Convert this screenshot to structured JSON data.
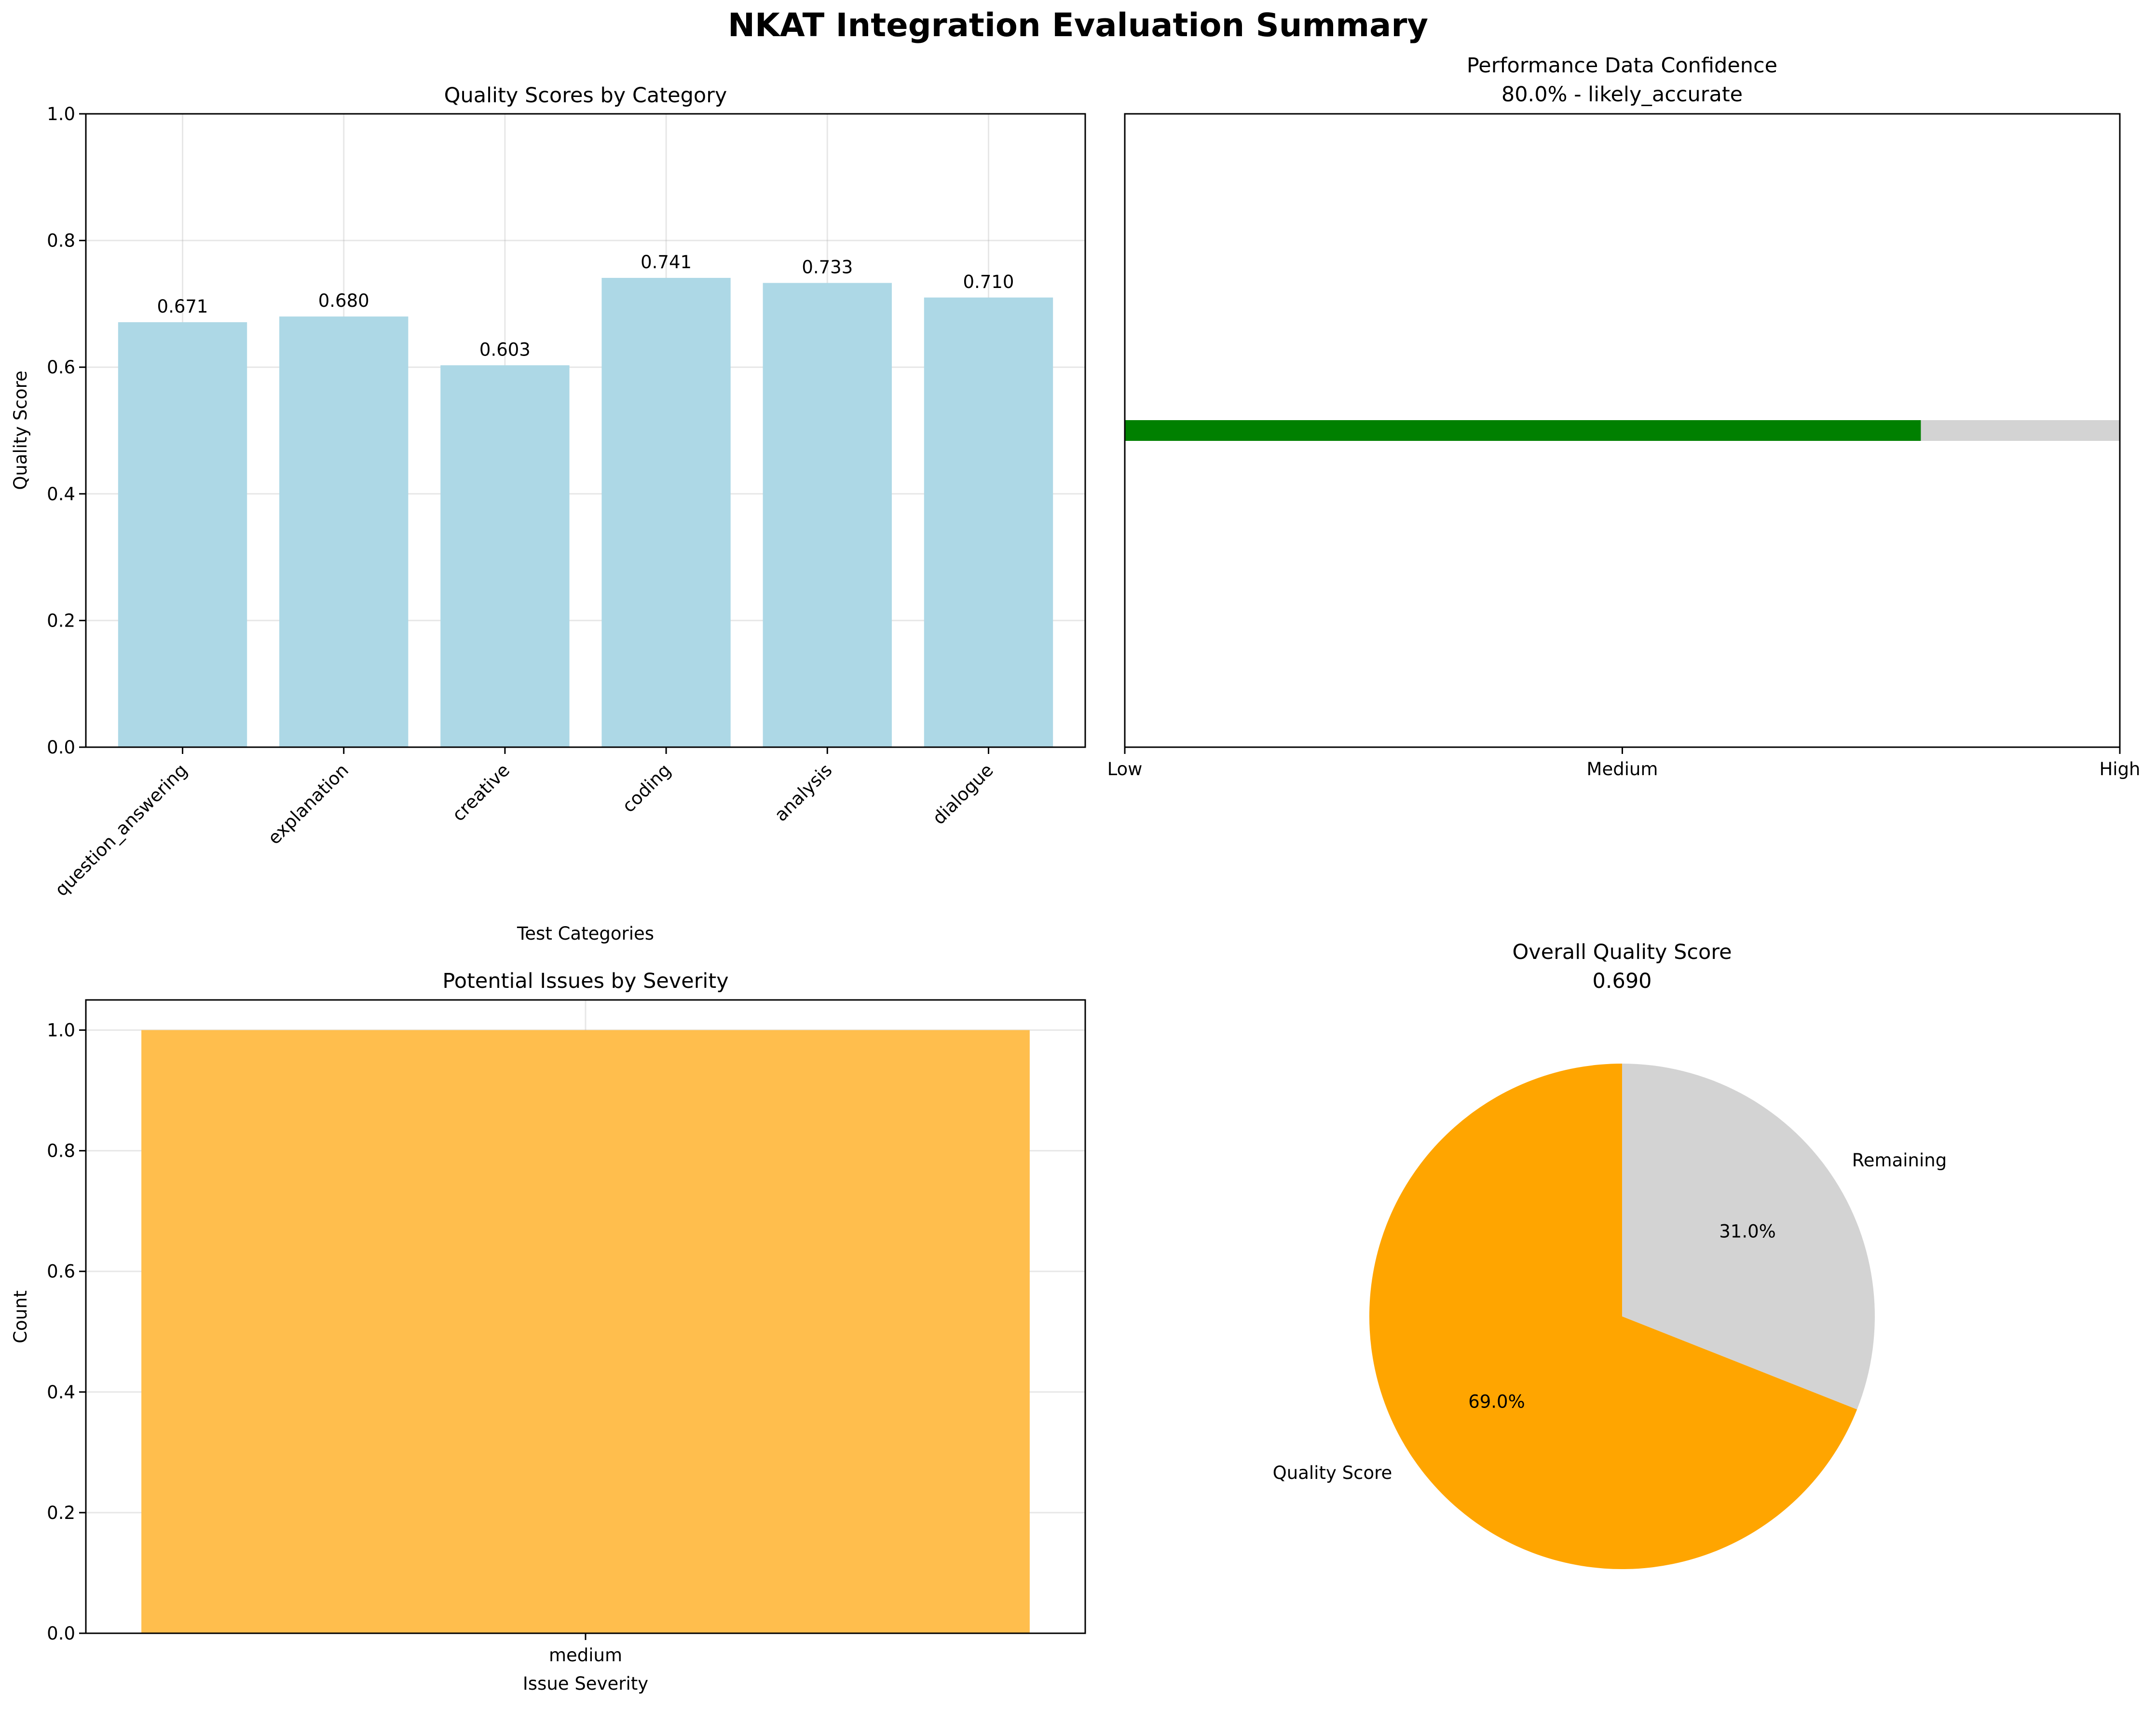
{
  "figure_title": "NKAT Integration Evaluation Summary",
  "colors": {
    "bars_quality": "#add8e6",
    "bar_issues": "#ffbe4d",
    "confidence_fill": "#008000",
    "confidence_rest": "#d3d3d3",
    "pie_quality": "#ffa500",
    "pie_remaining": "#d3d3d3"
  },
  "chart_data": [
    {
      "type": "bar",
      "title": "Quality Scores by Category",
      "xlabel": "Test Categories",
      "ylabel": "Quality Score",
      "ylim": [
        0,
        1.0
      ],
      "yticks": [
        "0.0",
        "0.2",
        "0.4",
        "0.6",
        "0.8",
        "1.0"
      ],
      "categories": [
        "question_answering",
        "explanation",
        "creative",
        "coding",
        "analysis",
        "dialogue"
      ],
      "values": [
        0.671,
        0.68,
        0.603,
        0.741,
        0.733,
        0.71
      ],
      "value_labels": [
        "0.671",
        "0.680",
        "0.603",
        "0.741",
        "0.733",
        "0.710"
      ],
      "grid": true
    },
    {
      "type": "bar",
      "orientation": "horizontal",
      "title": "Performance Data Confidence",
      "subtitle": "80.0% - likely_accurate",
      "xticks": [
        "Low",
        "Medium",
        "High"
      ],
      "value": 0.8,
      "xlim": [
        0,
        1
      ]
    },
    {
      "type": "bar",
      "title": "Potential Issues by Severity",
      "xlabel": "Issue Severity",
      "ylabel": "Count",
      "ylim": [
        0,
        1.05
      ],
      "yticks": [
        "0.0",
        "0.2",
        "0.4",
        "0.6",
        "0.8",
        "1.0"
      ],
      "categories": [
        "medium"
      ],
      "values": [
        1
      ],
      "grid": true
    },
    {
      "type": "pie",
      "title": "Overall Quality Score",
      "subtitle": "0.690",
      "labels": [
        "Quality Score",
        "Remaining"
      ],
      "values": [
        69.0,
        31.0
      ],
      "pct_labels": [
        "69.0%",
        "31.0%"
      ]
    }
  ]
}
